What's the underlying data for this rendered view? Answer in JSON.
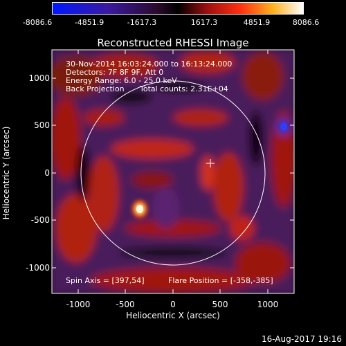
{
  "colorbar": {
    "ticks": [
      "-8086.6",
      "-4851.9",
      "-1617.3",
      "1617.3",
      "4851.9",
      "8086.6"
    ]
  },
  "title": "Reconstructed RHESSI Image",
  "info": {
    "line1": "30-Nov-2014 16:03:24.000 to 16:13:24.000",
    "line2": "Detectors: 7F 8F 9F, Att 0",
    "line3": "Energy Range: 6.0 - 25.0 keV",
    "line4a": "Back Projection",
    "line4b": "Total counts: 2.31E+04",
    "spin_axis": "Spin Axis = [397,54]",
    "flare_position": "Flare Position = [-358,-385]"
  },
  "axes": {
    "xlabel": "Heliocentric X (arcsec)",
    "ylabel": "Heliocentric Y (arcsec)",
    "xticks": [
      "-1000",
      "-500",
      "0",
      "500",
      "1000"
    ],
    "yticks": [
      "1000",
      "500",
      "0",
      "-500",
      "-1000"
    ]
  },
  "footer_date": "16-Aug-2017 19:16",
  "colors": {
    "negative": "#2030ff",
    "zero": "#000000",
    "positive": "#ff2a1a",
    "peak": "#ffffff"
  }
}
